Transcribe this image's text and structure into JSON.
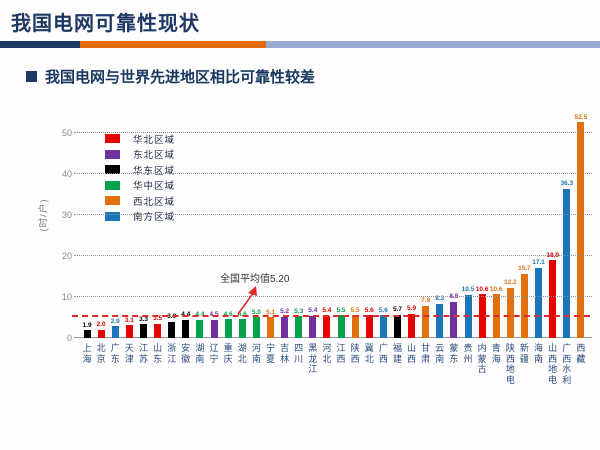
{
  "header": {
    "title": "我国电网可靠性现状",
    "divider_colors": [
      "#1f3864",
      "#e36c0a",
      "#9aa9ce"
    ]
  },
  "bullet": {
    "text": "我国电网与世界先进地区相比可靠性较差"
  },
  "chart_data": {
    "type": "bar",
    "title": "",
    "ylabel": "(时/户)",
    "ylim": [
      0,
      55
    ],
    "yticks": [
      0,
      10,
      20,
      30,
      40,
      50
    ],
    "grid": "dotted horizontal",
    "legend_position": "upper-left",
    "average_line": {
      "value": 5.2,
      "label": "全国平均值5.20",
      "color": "#dd2a2a"
    },
    "groups": [
      {
        "name": "华北区域",
        "color": "#e60000"
      },
      {
        "name": "东北区域",
        "color": "#7030a0"
      },
      {
        "name": "华东区域",
        "color": "#000000"
      },
      {
        "name": "华中区域",
        "color": "#00a24b"
      },
      {
        "name": "西北区域",
        "color": "#e2700f"
      },
      {
        "name": "南方区域",
        "color": "#1b75bb"
      }
    ],
    "bars": [
      {
        "category": "上海",
        "value": 1.9,
        "group": "华东区域"
      },
      {
        "category": "北京",
        "value": 2.0,
        "group": "华北区域"
      },
      {
        "category": "广东",
        "value": 2.9,
        "group": "南方区域"
      },
      {
        "category": "天津",
        "value": 3.1,
        "group": "华北区域"
      },
      {
        "category": "江苏",
        "value": 3.3,
        "group": "华东区域"
      },
      {
        "category": "山东",
        "value": 3.5,
        "group": "华北区域"
      },
      {
        "category": "浙江",
        "value": 3.9,
        "group": "华东区域"
      },
      {
        "category": "安徽",
        "value": 4.4,
        "group": "华东区域"
      },
      {
        "category": "湖南",
        "value": 4.4,
        "group": "华中区域"
      },
      {
        "category": "辽宁",
        "value": 4.5,
        "group": "东北区域"
      },
      {
        "category": "重庆",
        "value": 4.6,
        "group": "华中区域"
      },
      {
        "category": "湖北",
        "value": 4.6,
        "group": "华中区域"
      },
      {
        "category": "河南",
        "value": 5.0,
        "group": "华中区域"
      },
      {
        "category": "宁夏",
        "value": 5.1,
        "group": "西北区域"
      },
      {
        "category": "吉林",
        "value": 5.2,
        "group": "东北区域"
      },
      {
        "category": "四川",
        "value": 5.3,
        "group": "华中区域"
      },
      {
        "category": "黑龙江",
        "value": 5.4,
        "group": "东北区域"
      },
      {
        "category": "河北",
        "value": 5.4,
        "group": "华北区域"
      },
      {
        "category": "江西",
        "value": 5.5,
        "group": "华中区域"
      },
      {
        "category": "陕西",
        "value": 5.5,
        "group": "西北区域"
      },
      {
        "category": "冀北",
        "value": 5.6,
        "group": "华北区域"
      },
      {
        "category": "广西",
        "value": 5.6,
        "group": "南方区域"
      },
      {
        "category": "福建",
        "value": 5.7,
        "group": "华东区域"
      },
      {
        "category": "山西",
        "value": 5.9,
        "group": "华北区域"
      },
      {
        "category": "甘肃",
        "value": 7.9,
        "group": "西北区域"
      },
      {
        "category": "云南",
        "value": 8.3,
        "group": "南方区域"
      },
      {
        "category": "蒙东",
        "value": 8.8,
        "group": "东北区域"
      },
      {
        "category": "贵州",
        "value": 10.5,
        "group": "南方区域"
      },
      {
        "category": "内蒙古",
        "value": 10.6,
        "group": "华北区域"
      },
      {
        "category": "青海",
        "value": 10.6,
        "group": "西北区域"
      },
      {
        "category": "陕西地电",
        "value": 12.2,
        "group": "西北区域"
      },
      {
        "category": "新疆",
        "value": 15.7,
        "group": "西北区域"
      },
      {
        "category": "海南",
        "value": 17.1,
        "group": "南方区域"
      },
      {
        "category": "山西地电",
        "value": 18.9,
        "group": "华北区域"
      },
      {
        "category": "广西水利",
        "value": 36.3,
        "group": "南方区域"
      },
      {
        "category": "西藏",
        "value": 52.5,
        "group": "西北区域"
      }
    ]
  }
}
